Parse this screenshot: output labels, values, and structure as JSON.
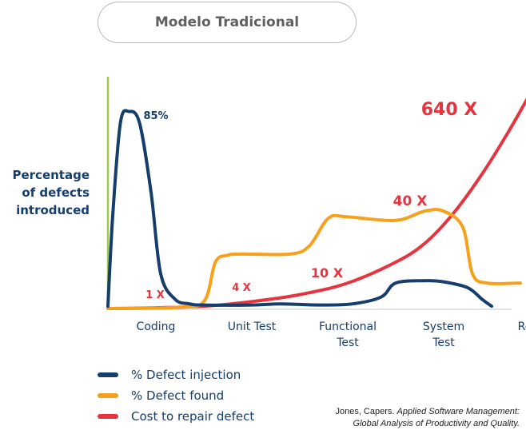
{
  "title": "Modelo Tradicional",
  "ylabel_lines": [
    "Percentage",
    "of defects",
    "introduced"
  ],
  "colors": {
    "injection": "#153e6d",
    "found": "#f7a01c",
    "cost": "#e6343e",
    "axis": "#9cc94a",
    "text": "#153e6d"
  },
  "chart_data": {
    "type": "line",
    "categories": [
      "Coding",
      "Unit Test",
      "Functional Test",
      "System Test",
      "Release"
    ],
    "ylim": [
      0,
      100
    ],
    "grid": false,
    "legend_position": "bottom-left",
    "series": [
      {
        "name": "% Defect injection",
        "key": "injection",
        "points": [
          [
            0,
            1
          ],
          [
            0.05,
            40
          ],
          [
            0.13,
            80
          ],
          [
            0.22,
            85
          ],
          [
            0.33,
            80
          ],
          [
            0.45,
            50
          ],
          [
            0.55,
            15
          ],
          [
            0.7,
            4
          ],
          [
            0.85,
            2
          ],
          [
            1,
            1.5
          ],
          [
            1.5,
            1.5
          ],
          [
            1.8,
            2
          ],
          [
            2.2,
            1.5
          ],
          [
            2.55,
            2
          ],
          [
            2.85,
            5
          ],
          [
            3,
            11
          ],
          [
            3.3,
            12
          ],
          [
            3.5,
            11.5
          ],
          [
            3.75,
            9
          ],
          [
            3.9,
            4
          ],
          [
            4,
            1
          ]
        ]
      },
      {
        "name": "% Defect found",
        "key": "found",
        "points": [
          [
            0,
            0
          ],
          [
            0.7,
            0.5
          ],
          [
            1,
            3
          ],
          [
            1.12,
            20
          ],
          [
            1.25,
            23
          ],
          [
            1.4,
            23.5
          ],
          [
            1.9,
            23.5
          ],
          [
            2.1,
            27
          ],
          [
            2.3,
            39
          ],
          [
            2.5,
            39.5
          ],
          [
            3,
            38
          ],
          [
            3.3,
            42
          ],
          [
            3.5,
            42
          ],
          [
            3.7,
            35
          ],
          [
            3.8,
            15
          ],
          [
            3.95,
            11
          ],
          [
            4.3,
            11
          ]
        ]
      },
      {
        "name": "Cost to repair defect",
        "key": "cost",
        "points": [
          [
            0,
            0
          ],
          [
            0.5,
            0.3
          ],
          [
            1,
            1
          ],
          [
            1.5,
            3
          ],
          [
            2,
            6
          ],
          [
            2.5,
            11
          ],
          [
            3,
            20
          ],
          [
            3.3,
            28
          ],
          [
            3.6,
            41
          ],
          [
            3.9,
            58
          ],
          [
            4.2,
            78
          ],
          [
            4.5,
            100
          ]
        ]
      }
    ],
    "annotations": [
      {
        "text": "85%",
        "key": "peak"
      },
      {
        "text": "1 X",
        "key": "c1"
      },
      {
        "text": "4 X",
        "key": "c4"
      },
      {
        "text": "10 X",
        "key": "c10"
      },
      {
        "text": "40 X",
        "key": "c40"
      },
      {
        "text": "640 X",
        "key": "c640"
      }
    ]
  },
  "x_tick_labels": [
    {
      "lines": [
        "Coding"
      ]
    },
    {
      "lines": [
        "Unit Test"
      ]
    },
    {
      "lines": [
        "Functional",
        "Test"
      ]
    },
    {
      "lines": [
        "System",
        "Test"
      ]
    },
    {
      "lines": [
        "Release"
      ]
    }
  ],
  "legend": [
    {
      "label": "% Defect injection",
      "color_key": "injection"
    },
    {
      "label": "% Defect found",
      "color_key": "found"
    },
    {
      "label": "Cost to repair defect",
      "color_key": "cost"
    }
  ],
  "source": {
    "line1_author": "Jones, Capers.",
    "line1_title": "Applied Software Management:",
    "line2_title": "Global Analysis of Productivity and Quality."
  }
}
